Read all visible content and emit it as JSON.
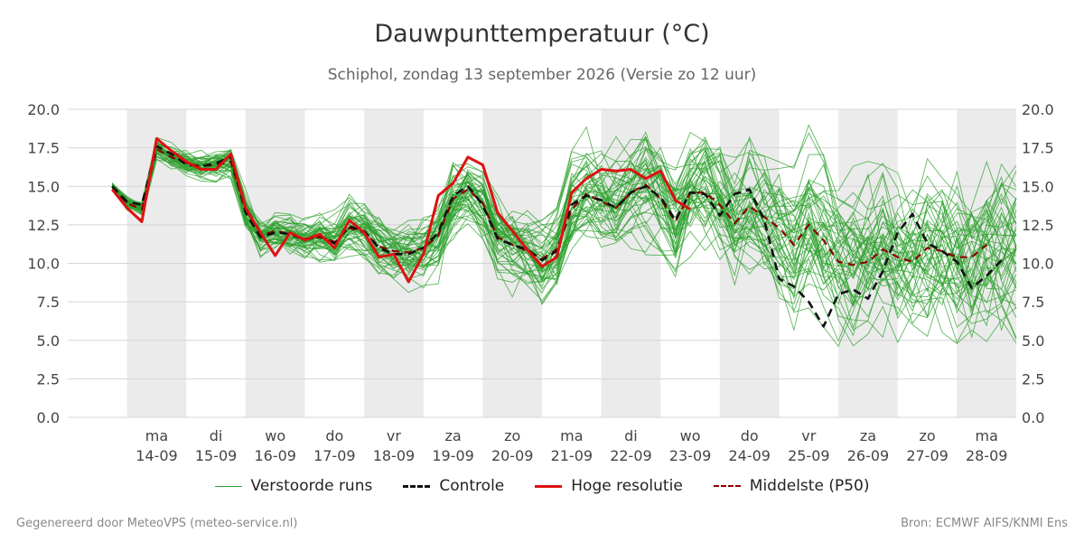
{
  "title": "Dauwpunttemperatuur (°C)",
  "subtitle": "Schiphol, zondag 13 september 2026 (Versie zo 12 uur)",
  "footer_left": "Gegenereerd door MeteoVPS (meteo-service.nl)",
  "footer_right": "Bron: ECMWF AIFS/KNMI Ens",
  "legend": [
    {
      "label": "Verstoorde runs",
      "color": "#2ca02c",
      "style": "thin"
    },
    {
      "label": "Controle",
      "color": "#111111",
      "style": "dashed"
    },
    {
      "label": "Hoge resolutie",
      "color": "#dd1111",
      "style": "solid"
    },
    {
      "label": "Middelste (P50)",
      "color": "#8b0000",
      "style": "dashed"
    }
  ],
  "chart_data": {
    "type": "line",
    "title": "Dauwpunttemperatuur (°C)",
    "xlabel": "",
    "ylabel": "",
    "ylim": [
      0,
      20
    ],
    "yticks": [
      "0.0",
      "2.5",
      "5.0",
      "7.5",
      "10.0",
      "12.5",
      "15.0",
      "17.5",
      "20.0"
    ],
    "xlim_days": [
      "2026-09-13",
      "2026-09-28"
    ],
    "x_ticks": [
      {
        "day": "ma",
        "date": "14-09"
      },
      {
        "day": "di",
        "date": "15-09"
      },
      {
        "day": "wo",
        "date": "16-09"
      },
      {
        "day": "do",
        "date": "17-09"
      },
      {
        "day": "vr",
        "date": "18-09"
      },
      {
        "day": "za",
        "date": "19-09"
      },
      {
        "day": "zo",
        "date": "20-09"
      },
      {
        "day": "ma",
        "date": "21-09"
      },
      {
        "day": "di",
        "date": "22-09"
      },
      {
        "day": "wo",
        "date": "23-09"
      },
      {
        "day": "do",
        "date": "24-09"
      },
      {
        "day": "vr",
        "date": "25-09"
      },
      {
        "day": "za",
        "date": "26-09"
      },
      {
        "day": "zo",
        "date": "27-09"
      },
      {
        "day": "ma",
        "date": "28-09"
      }
    ],
    "grid": true,
    "legend_position": "bottom",
    "series": [
      {
        "name": "Hoge resolutie",
        "color": "#dd1111",
        "points": [
          [
            "2026-09-13T18:00",
            14.8
          ],
          [
            "2026-09-14T00:00",
            13.6
          ],
          [
            "2026-09-14T06:00",
            12.7
          ],
          [
            "2026-09-14T12:00",
            18.1
          ],
          [
            "2026-09-14T18:00",
            17.3
          ],
          [
            "2026-09-15T00:00",
            16.6
          ],
          [
            "2026-09-15T06:00",
            16.1
          ],
          [
            "2026-09-15T12:00",
            16.1
          ],
          [
            "2026-09-15T18:00",
            17.1
          ],
          [
            "2026-09-16T00:00",
            13.6
          ],
          [
            "2026-09-16T06:00",
            12.0
          ],
          [
            "2026-09-16T12:00",
            10.5
          ],
          [
            "2026-09-16T18:00",
            12.0
          ],
          [
            "2026-09-17T00:00",
            11.5
          ],
          [
            "2026-09-17T06:00",
            11.9
          ],
          [
            "2026-09-17T12:00",
            11.0
          ],
          [
            "2026-09-17T18:00",
            12.8
          ],
          [
            "2026-09-18T00:00",
            12.0
          ],
          [
            "2026-09-18T06:00",
            10.4
          ],
          [
            "2026-09-18T12:00",
            10.6
          ],
          [
            "2026-09-18T18:00",
            8.8
          ],
          [
            "2026-09-19T00:00",
            10.6
          ],
          [
            "2026-09-19T06:00",
            14.4
          ],
          [
            "2026-09-19T12:00",
            15.2
          ],
          [
            "2026-09-19T18:00",
            16.9
          ],
          [
            "2026-09-20T00:00",
            16.4
          ],
          [
            "2026-09-20T06:00",
            13.3
          ],
          [
            "2026-09-20T12:00",
            12.1
          ],
          [
            "2026-09-20T18:00",
            10.9
          ],
          [
            "2026-09-21T00:00",
            9.8
          ],
          [
            "2026-09-21T06:00",
            10.4
          ],
          [
            "2026-09-21T12:00",
            14.6
          ],
          [
            "2026-09-21T18:00",
            15.5
          ],
          [
            "2026-09-22T00:00",
            16.1
          ],
          [
            "2026-09-22T06:00",
            16.0
          ],
          [
            "2026-09-22T12:00",
            16.1
          ],
          [
            "2026-09-22T18:00",
            15.5
          ],
          [
            "2026-09-23T00:00",
            16.0
          ],
          [
            "2026-09-23T06:00",
            14.1
          ],
          [
            "2026-09-23T12:00",
            13.5
          ]
        ]
      },
      {
        "name": "Controle",
        "color": "#111111",
        "points": [
          [
            "2026-09-13T18:00",
            15.0
          ],
          [
            "2026-09-14T00:00",
            14.0
          ],
          [
            "2026-09-14T06:00",
            13.8
          ],
          [
            "2026-09-14T12:00",
            17.6
          ],
          [
            "2026-09-14T18:00",
            17.1
          ],
          [
            "2026-09-15T00:00",
            16.4
          ],
          [
            "2026-09-15T06:00",
            16.3
          ],
          [
            "2026-09-15T12:00",
            16.5
          ],
          [
            "2026-09-15T18:00",
            16.9
          ],
          [
            "2026-09-16T00:00",
            13.3
          ],
          [
            "2026-09-16T06:00",
            11.7
          ],
          [
            "2026-09-16T12:00",
            12.0
          ],
          [
            "2026-09-16T18:00",
            11.9
          ],
          [
            "2026-09-17T00:00",
            11.5
          ],
          [
            "2026-09-17T06:00",
            11.8
          ],
          [
            "2026-09-17T12:00",
            11.3
          ],
          [
            "2026-09-17T18:00",
            12.4
          ],
          [
            "2026-09-18T00:00",
            12.1
          ],
          [
            "2026-09-18T06:00",
            11.0
          ],
          [
            "2026-09-18T12:00",
            10.6
          ],
          [
            "2026-09-18T18:00",
            10.6
          ],
          [
            "2026-09-19T00:00",
            11.0
          ],
          [
            "2026-09-19T06:00",
            12.0
          ],
          [
            "2026-09-19T12:00",
            14.4
          ],
          [
            "2026-09-19T18:00",
            15.0
          ],
          [
            "2026-09-20T00:00",
            13.8
          ],
          [
            "2026-09-20T06:00",
            11.6
          ],
          [
            "2026-09-20T12:00",
            11.2
          ],
          [
            "2026-09-20T18:00",
            10.9
          ],
          [
            "2026-09-21T00:00",
            10.2
          ],
          [
            "2026-09-21T06:00",
            10.8
          ],
          [
            "2026-09-21T12:00",
            13.8
          ],
          [
            "2026-09-21T18:00",
            14.4
          ],
          [
            "2026-09-22T00:00",
            14.1
          ],
          [
            "2026-09-22T06:00",
            13.6
          ],
          [
            "2026-09-22T12:00",
            14.6
          ],
          [
            "2026-09-22T18:00",
            15.0
          ],
          [
            "2026-09-23T00:00",
            14.3
          ],
          [
            "2026-09-23T06:00",
            12.8
          ],
          [
            "2026-09-23T12:00",
            14.6
          ],
          [
            "2026-09-23T18:00",
            14.5
          ],
          [
            "2026-09-24T00:00",
            13.1
          ],
          [
            "2026-09-24T06:00",
            14.5
          ],
          [
            "2026-09-24T12:00",
            14.8
          ],
          [
            "2026-09-24T18:00",
            12.8
          ],
          [
            "2026-09-25T00:00",
            9.0
          ],
          [
            "2026-09-25T06:00",
            8.5
          ],
          [
            "2026-09-25T12:00",
            7.5
          ],
          [
            "2026-09-25T18:00",
            5.9
          ],
          [
            "2026-09-26T00:00",
            8.0
          ],
          [
            "2026-09-26T06:00",
            8.3
          ],
          [
            "2026-09-26T12:00",
            7.7
          ],
          [
            "2026-09-26T18:00",
            9.5
          ],
          [
            "2026-09-27T00:00",
            12.0
          ],
          [
            "2026-09-27T06:00",
            13.2
          ],
          [
            "2026-09-27T12:00",
            11.3
          ],
          [
            "2026-09-27T18:00",
            10.8
          ],
          [
            "2026-09-28T00:00",
            10.1
          ],
          [
            "2026-09-28T06:00",
            8.4
          ],
          [
            "2026-09-28T12:00",
            9.2
          ],
          [
            "2026-09-28T18:00",
            10.2
          ]
        ]
      },
      {
        "name": "Middelste (P50)",
        "color": "#8b0000",
        "points": [
          [
            "2026-09-13T18:00",
            15.0
          ],
          [
            "2026-09-14T00:00",
            13.9
          ],
          [
            "2026-09-14T06:00",
            13.5
          ],
          [
            "2026-09-14T12:00",
            17.4
          ],
          [
            "2026-09-14T18:00",
            16.9
          ],
          [
            "2026-09-15T00:00",
            16.5
          ],
          [
            "2026-09-15T06:00",
            16.3
          ],
          [
            "2026-09-15T12:00",
            16.4
          ],
          [
            "2026-09-15T18:00",
            16.6
          ],
          [
            "2026-09-16T00:00",
            13.4
          ],
          [
            "2026-09-16T06:00",
            11.8
          ],
          [
            "2026-09-16T12:00",
            12.1
          ],
          [
            "2026-09-16T18:00",
            11.9
          ],
          [
            "2026-09-17T00:00",
            11.6
          ],
          [
            "2026-09-17T06:00",
            11.7
          ],
          [
            "2026-09-17T12:00",
            11.4
          ],
          [
            "2026-09-17T18:00",
            12.3
          ],
          [
            "2026-09-18T00:00",
            12.0
          ],
          [
            "2026-09-18T06:00",
            11.1
          ],
          [
            "2026-09-18T12:00",
            10.8
          ],
          [
            "2026-09-18T18:00",
            10.7
          ],
          [
            "2026-09-19T00:00",
            11.0
          ],
          [
            "2026-09-19T06:00",
            11.8
          ],
          [
            "2026-09-19T12:00",
            14.2
          ],
          [
            "2026-09-19T18:00",
            14.8
          ],
          [
            "2026-09-20T00:00",
            13.9
          ],
          [
            "2026-09-20T06:00",
            11.7
          ],
          [
            "2026-09-20T12:00",
            11.2
          ],
          [
            "2026-09-20T18:00",
            10.8
          ],
          [
            "2026-09-21T00:00",
            10.3
          ],
          [
            "2026-09-21T06:00",
            10.9
          ],
          [
            "2026-09-21T12:00",
            13.5
          ],
          [
            "2026-09-21T18:00",
            14.5
          ],
          [
            "2026-09-22T00:00",
            14.0
          ],
          [
            "2026-09-22T06:00",
            13.6
          ],
          [
            "2026-09-22T12:00",
            14.6
          ],
          [
            "2026-09-22T18:00",
            15.1
          ],
          [
            "2026-09-23T00:00",
            14.2
          ],
          [
            "2026-09-23T06:00",
            12.7
          ],
          [
            "2026-09-23T12:00",
            14.6
          ],
          [
            "2026-09-23T18:00",
            14.6
          ],
          [
            "2026-09-24T00:00",
            13.8
          ],
          [
            "2026-09-24T06:00",
            12.6
          ],
          [
            "2026-09-24T12:00",
            13.7
          ],
          [
            "2026-09-24T18:00",
            13.0
          ],
          [
            "2026-09-25T00:00",
            12.3
          ],
          [
            "2026-09-25T06:00",
            11.2
          ],
          [
            "2026-09-25T12:00",
            12.5
          ],
          [
            "2026-09-25T18:00",
            11.5
          ],
          [
            "2026-09-26T00:00",
            10.1
          ],
          [
            "2026-09-26T06:00",
            9.9
          ],
          [
            "2026-09-26T12:00",
            10.1
          ],
          [
            "2026-09-26T18:00",
            10.9
          ],
          [
            "2026-09-27T00:00",
            10.4
          ],
          [
            "2026-09-27T06:00",
            10.1
          ],
          [
            "2026-09-27T12:00",
            11.0
          ],
          [
            "2026-09-27T18:00",
            10.8
          ],
          [
            "2026-09-28T00:00",
            10.4
          ],
          [
            "2026-09-28T06:00",
            10.4
          ],
          [
            "2026-09-28T12:00",
            11.2
          ]
        ]
      }
    ],
    "ensemble": {
      "name": "Verstoorde runs",
      "color": "#2ca02c",
      "members": 50,
      "interval_hours": 6,
      "start": "2026-09-13T18:00"
    }
  }
}
